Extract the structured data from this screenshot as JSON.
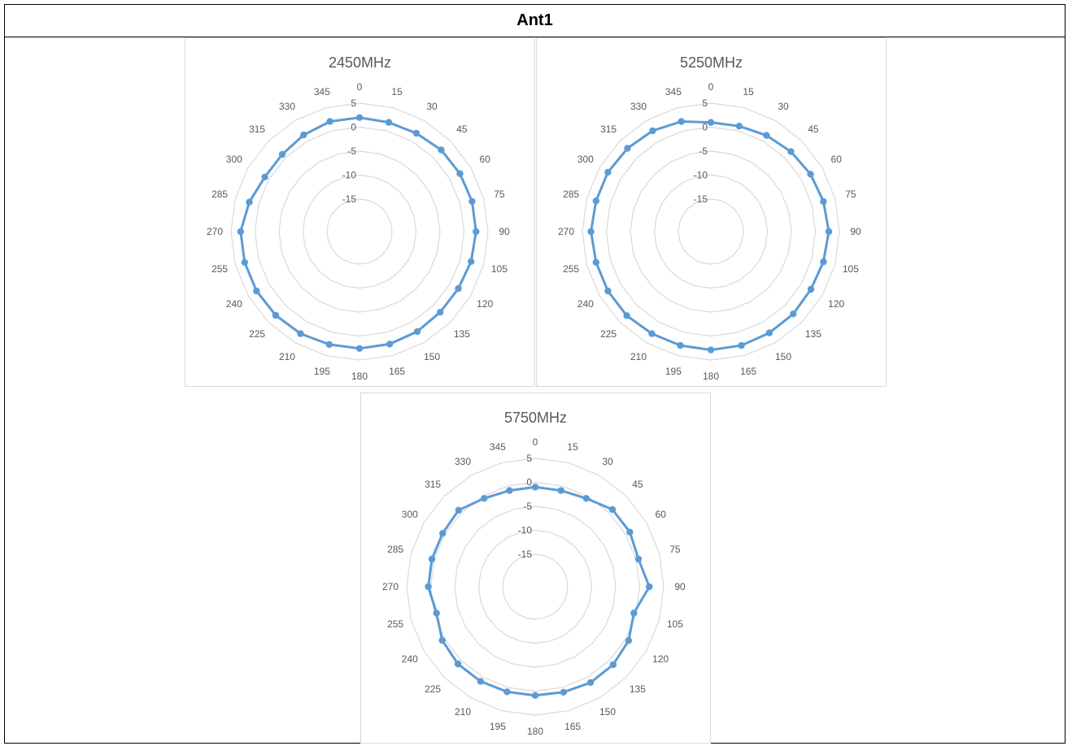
{
  "header": {
    "title": "Ant1"
  },
  "chart_data": [
    {
      "type": "radar",
      "title": "2450MHz",
      "categories": [
        "0",
        "15",
        "30",
        "45",
        "60",
        "75",
        "90",
        "105",
        "120",
        "135",
        "150",
        "165",
        "180",
        "195",
        "210",
        "225",
        "240",
        "255",
        "270",
        "285",
        "300",
        "315",
        "330",
        "345"
      ],
      "rlim": [
        -15,
        5
      ],
      "r_ticks": [
        "-15",
        "-10",
        "-5",
        "0",
        "5"
      ],
      "grid": true,
      "series": [
        {
          "values": [
            2.0,
            1.8,
            1.9,
            2.3,
            2.4,
            2.5,
            2.5,
            2.3,
            2.0,
            2.0,
            2.3,
            2.5,
            2.6,
            2.6,
            2.8,
            2.9,
            3.0,
            3.0,
            3.0,
            2.0,
            1.0,
            1.0,
            1.5,
            2.0
          ]
        }
      ]
    },
    {
      "type": "radar",
      "title": "5250MHz",
      "categories": [
        "0",
        "15",
        "30",
        "45",
        "60",
        "75",
        "90",
        "105",
        "120",
        "135",
        "150",
        "165",
        "180",
        "195",
        "210",
        "225",
        "240",
        "255",
        "270",
        "285",
        "300",
        "315",
        "330",
        "345"
      ],
      "rlim": [
        -15,
        5
      ],
      "r_ticks": [
        "-15",
        "-10",
        "-5",
        "0",
        "5"
      ],
      "grid": true,
      "series": [
        {
          "values": [
            1.0,
            1.0,
            1.4,
            1.8,
            2.2,
            2.5,
            2.8,
            2.5,
            2.3,
            2.5,
            2.6,
            2.8,
            2.9,
            2.8,
            2.8,
            3.0,
            3.0,
            3.0,
            3.2,
            3.0,
            3.0,
            2.8,
            2.5,
            2.0
          ]
        }
      ]
    },
    {
      "type": "radar",
      "title": "5750MHz",
      "categories": [
        "0",
        "15",
        "30",
        "45",
        "60",
        "75",
        "90",
        "105",
        "120",
        "135",
        "150",
        "165",
        "180",
        "195",
        "210",
        "225",
        "240",
        "255",
        "270",
        "285",
        "300",
        "315",
        "330",
        "345"
      ],
      "rlim": [
        -15,
        5
      ],
      "r_ticks": [
        "-15",
        "-10",
        "-5",
        "0",
        "5"
      ],
      "grid": true,
      "series": [
        {
          "values": [
            -1.0,
            -1.0,
            -0.5,
            1.0,
            1.0,
            0.5,
            2.0,
            -0.5,
            0.7,
            1.2,
            1.3,
            1.0,
            0.9,
            0.9,
            1.0,
            1.0,
            0.6,
            -0.5,
            0.5,
            0.5,
            0.5,
            0.8,
            -0.5,
            -1.0
          ]
        }
      ]
    }
  ]
}
